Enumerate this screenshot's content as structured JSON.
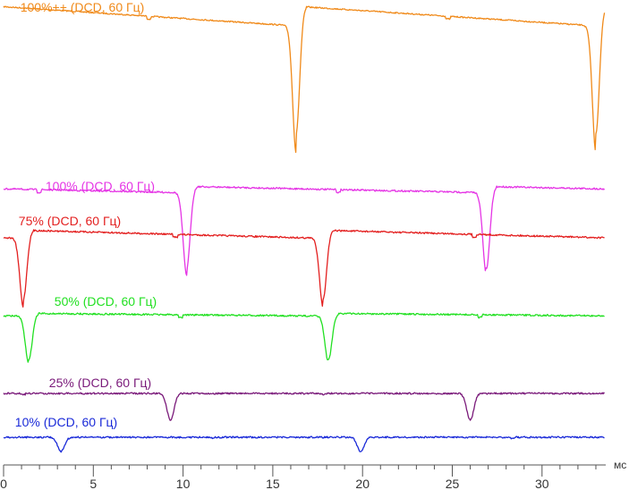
{
  "chart_data": {
    "type": "line",
    "title": "",
    "xlabel": "мс",
    "ylabel": "",
    "xlim": [
      0,
      33.5
    ],
    "x_ticks": [
      0,
      5,
      10,
      15,
      20,
      25,
      30
    ],
    "x_tick_labels": [
      "0",
      "5",
      "10",
      "15",
      "20",
      "25",
      "30"
    ],
    "grid": false,
    "period_ms": 16.667,
    "series": [
      {
        "name": "100%++ (DCD, 60 Гц)",
        "color": "#f08a1a",
        "level": 1.0,
        "dip_ms": [
          16.3,
          33.0
        ],
        "dip_depth": 0.95
      },
      {
        "name": "100% (DCD, 60 Гц)",
        "color": "#e535e5",
        "level": 0.88,
        "dip_ms": [
          10.2,
          26.9
        ],
        "dip_depth": 0.9
      },
      {
        "name": "75% (DCD, 60 Гц)",
        "color": "#e31f1f",
        "level": 0.74,
        "dip_ms": [
          1.1,
          17.8
        ],
        "dip_depth": 0.7
      },
      {
        "name": "50% (DCD, 60 Гц)",
        "color": "#22e022",
        "level": 0.52,
        "dip_ms": [
          1.4,
          18.1
        ],
        "dip_depth": 0.5
      },
      {
        "name": "25% (DCD, 60 Гц)",
        "color": "#7a1a7a",
        "level": 0.28,
        "dip_ms": [
          9.3,
          26.0
        ],
        "dip_depth": 0.3
      },
      {
        "name": "10% (DCD, 60 Гц)",
        "color": "#1a2ad8",
        "level": 0.1,
        "dip_ms": [
          3.2,
          19.9
        ],
        "dip_depth": 0.15
      }
    ]
  }
}
